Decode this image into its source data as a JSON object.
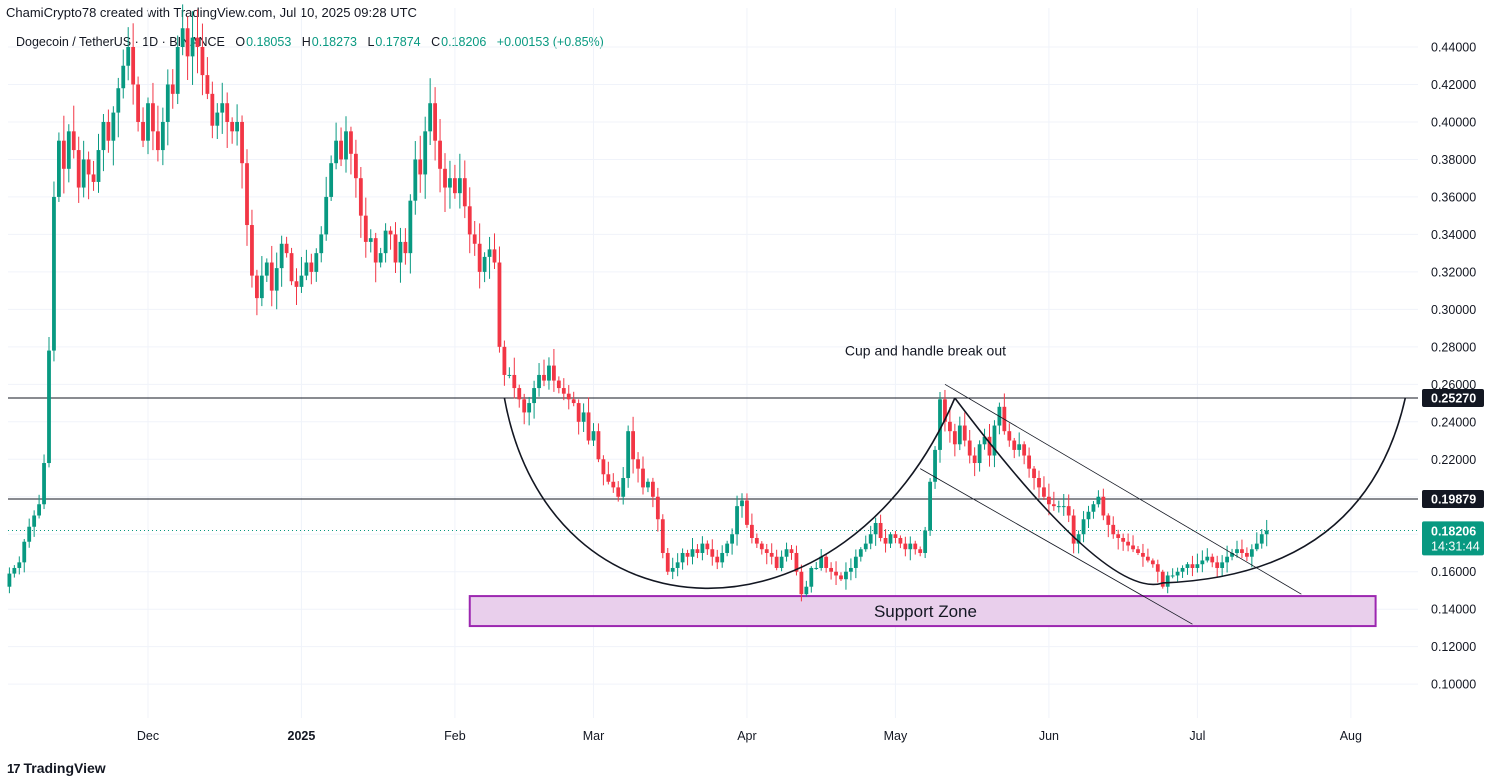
{
  "header": {
    "attribution": "ChamiCrypto78 created with TradingView.com, Jul 10, 2025 09:28 UTC"
  },
  "legend": {
    "symbol": "Dogecoin / TetherUS · 1D · BINANCE",
    "open_label": "O",
    "open": "0.18053",
    "high_label": "H",
    "high": "0.18273",
    "low_label": "L",
    "low": "0.17874",
    "close_label": "C",
    "close": "0.18206",
    "change": "+0.00153 (+0.85%)"
  },
  "footer": {
    "brand": "TradingView",
    "brand_mark": "17"
  },
  "colors": {
    "up": "#089981",
    "down": "#F23645",
    "zone_fill": "#E9CFEC",
    "zone_border": "#9C27B0"
  },
  "chart_data": {
    "type": "candlestick",
    "title": "Dogecoin / TetherUS · 1D · BINANCE",
    "ylim": [
      0.08,
      0.45
    ],
    "y_ticks": [
      "0.44000",
      "0.42000",
      "0.40000",
      "0.38000",
      "0.36000",
      "0.34000",
      "0.32000",
      "0.30000",
      "0.28000",
      "0.26000",
      "0.24000",
      "0.22000",
      "0.20000",
      "0.18000",
      "0.16000",
      "0.14000",
      "0.12000",
      "0.10000"
    ],
    "x_ticks": [
      "Dec",
      "2025",
      "Feb",
      "Mar",
      "Apr",
      "May",
      "Jun",
      "Jul",
      "Aug"
    ],
    "start_date": "2024-11-03",
    "price_tags": [
      {
        "label": "0.25270",
        "value": 0.2527,
        "style": "black"
      },
      {
        "label": "0.19879",
        "value": 0.19879,
        "style": "black"
      },
      {
        "label": "0.18206",
        "countdown": "14:31:44",
        "value": 0.18206,
        "style": "green"
      }
    ],
    "horizontal_lines": [
      0.2527,
      0.19879
    ],
    "annotations": [
      {
        "text": "Cup and handle break out",
        "date": "2025-05-01",
        "value": 0.278
      },
      {
        "text": "Support Zone",
        "date": "2025-05-01",
        "value": 0.1385
      }
    ],
    "support_zone": {
      "from_date": "2025-02-04",
      "to_date": "2025-08-06",
      "low": 0.131,
      "high": 0.147
    },
    "closes": [
      0.159,
      0.162,
      0.165,
      0.176,
      0.184,
      0.19,
      0.196,
      0.218,
      0.278,
      0.36,
      0.39,
      0.375,
      0.395,
      0.385,
      0.365,
      0.38,
      0.372,
      0.368,
      0.385,
      0.4,
      0.39,
      0.405,
      0.418,
      0.43,
      0.44,
      0.42,
      0.4,
      0.39,
      0.41,
      0.395,
      0.385,
      0.4,
      0.42,
      0.415,
      0.44,
      0.45,
      0.435,
      0.445,
      0.44,
      0.425,
      0.415,
      0.398,
      0.405,
      0.41,
      0.4,
      0.395,
      0.4,
      0.378,
      0.345,
      0.318,
      0.306,
      0.318,
      0.325,
      0.31,
      0.322,
      0.335,
      0.33,
      0.315,
      0.312,
      0.318,
      0.325,
      0.32,
      0.33,
      0.34,
      0.36,
      0.378,
      0.39,
      0.38,
      0.395,
      0.383,
      0.37,
      0.35,
      0.336,
      0.338,
      0.325,
      0.33,
      0.342,
      0.34,
      0.325,
      0.336,
      0.33,
      0.358,
      0.38,
      0.372,
      0.395,
      0.41,
      0.39,
      0.375,
      0.365,
      0.37,
      0.362,
      0.37,
      0.355,
      0.34,
      0.335,
      0.32,
      0.328,
      0.332,
      0.325,
      0.28,
      0.265,
      0.265,
      0.258,
      0.252,
      0.245,
      0.25,
      0.258,
      0.265,
      0.262,
      0.27,
      0.262,
      0.258,
      0.255,
      0.252,
      0.25,
      0.24,
      0.245,
      0.23,
      0.235,
      0.22,
      0.212,
      0.208,
      0.205,
      0.2,
      0.21,
      0.235,
      0.22,
      0.215,
      0.205,
      0.208,
      0.2,
      0.188,
      0.17,
      0.16,
      0.162,
      0.165,
      0.17,
      0.168,
      0.172,
      0.17,
      0.175,
      0.172,
      0.168,
      0.165,
      0.17,
      0.175,
      0.18,
      0.195,
      0.198,
      0.185,
      0.178,
      0.175,
      0.172,
      0.17,
      0.168,
      0.162,
      0.168,
      0.172,
      0.17,
      0.16,
      0.148,
      0.152,
      0.162,
      0.162,
      0.168,
      0.162,
      0.16,
      0.158,
      0.156,
      0.16,
      0.162,
      0.168,
      0.172,
      0.175,
      0.18,
      0.186,
      0.178,
      0.175,
      0.18,
      0.178,
      0.175,
      0.172,
      0.175,
      0.172,
      0.17,
      0.182,
      0.208,
      0.225,
      0.252,
      0.24,
      0.235,
      0.228,
      0.238,
      0.23,
      0.222,
      0.218,
      0.228,
      0.232,
      0.222,
      0.238,
      0.248,
      0.235,
      0.23,
      0.225,
      0.228,
      0.222,
      0.215,
      0.21,
      0.205,
      0.2,
      0.196,
      0.195,
      0.195,
      0.195,
      0.19,
      0.175,
      0.18,
      0.188,
      0.192,
      0.196,
      0.2,
      0.19,
      0.185,
      0.18,
      0.178,
      0.176,
      0.174,
      0.172,
      0.17,
      0.168,
      0.166,
      0.164,
      0.16,
      0.152,
      0.158,
      0.158,
      0.16,
      0.162,
      0.164,
      0.162,
      0.164,
      0.166,
      0.168,
      0.165,
      0.162,
      0.165,
      0.168,
      0.17,
      0.172,
      0.17,
      0.168,
      0.172,
      0.175,
      0.18,
      0.182
    ]
  }
}
